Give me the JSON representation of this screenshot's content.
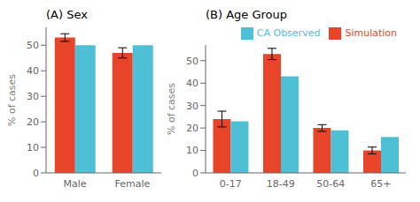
{
  "chart_data": [
    {
      "type": "bar",
      "title": "(A) Sex",
      "categories": [
        "Male",
        "Female"
      ],
      "y_label": "% of cases",
      "series": [
        {
          "color": "#E8442A",
          "values": [
            53,
            47
          ],
          "errors": [
            1.5,
            2.0
          ]
        },
        {
          "color": "#4DC0D6",
          "values": [
            50,
            50
          ]
        }
      ],
      "ylim": [
        0,
        57
      ],
      "yticks": [
        0,
        10,
        20,
        30,
        40,
        50
      ]
    },
    {
      "type": "bar",
      "title": "(B) Age Group",
      "categories": [
        "0-17",
        "18-49",
        "50-64",
        "65+"
      ],
      "y_label": "% of cases",
      "series": [
        {
          "name": "Simulation",
          "color": "#E8442A",
          "values": [
            24,
            53,
            20,
            10
          ],
          "errors": [
            3.5,
            2.5,
            1.5,
            1.5
          ]
        },
        {
          "name": "CA Observed",
          "color": "#4DC0D6",
          "values": [
            23,
            43,
            19,
            16
          ]
        }
      ],
      "ylim": [
        0,
        57
      ],
      "yticks": [
        0,
        10,
        20,
        30,
        40,
        50
      ],
      "legend": "upper right"
    }
  ]
}
